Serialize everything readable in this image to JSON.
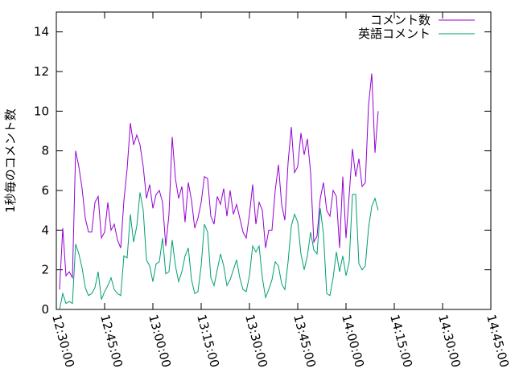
{
  "chart_data": {
    "type": "line",
    "ylabel": "1秒毎のコメント数",
    "xlim": [
      "12:30:00",
      "14:45:00"
    ],
    "ylim": [
      0,
      15
    ],
    "x_ticks": [
      "12:30:00",
      "12:45:00",
      "13:00:00",
      "13:15:00",
      "13:30:00",
      "13:45:00",
      "14:00:00",
      "14:15:00",
      "14:30:00",
      "14:45:00"
    ],
    "y_ticks": [
      "0",
      "2",
      "4",
      "6",
      "8",
      "10",
      "12",
      "14"
    ],
    "legend_position": "top-right",
    "series": [
      {
        "name": "コメント数",
        "color": "#9400d3",
        "start": "12:31:00",
        "step_seconds": 60,
        "values": [
          1.0,
          4.1,
          1.7,
          1.9,
          1.6,
          8.0,
          7.2,
          6.1,
          4.6,
          3.9,
          3.9,
          5.4,
          5.7,
          3.6,
          3.9,
          5.4,
          4.0,
          4.3,
          3.5,
          3.1,
          5.5,
          7.1,
          9.4,
          8.3,
          8.8,
          8.3,
          7.2,
          5.6,
          6.3,
          5.1,
          5.8,
          6.0,
          5.4,
          3.2,
          4.8,
          8.7,
          6.6,
          5.6,
          6.2,
          4.4,
          6.4,
          5.5,
          4.1,
          4.6,
          5.4,
          6.7,
          6.6,
          4.7,
          4.3,
          5.7,
          5.3,
          6.1,
          4.7,
          6.0,
          4.8,
          5.3,
          4.6,
          3.9,
          3.6,
          4.8,
          6.3,
          4.3,
          5.4,
          5.0,
          3.1,
          4.0,
          4.0,
          6.0,
          7.3,
          5.3,
          4.5,
          7.4,
          9.2,
          6.9,
          7.2,
          8.9,
          7.8,
          8.6,
          6.9,
          3.4,
          3.7,
          5.6,
          6.4,
          5.0,
          4.7,
          6.0,
          5.7,
          3.1,
          6.7,
          3.6,
          5.8,
          8.1,
          6.7,
          7.6,
          6.2,
          6.4,
          10.3,
          11.9,
          7.9,
          10.0
        ]
      },
      {
        "name": "英語コメント",
        "color": "#009e73",
        "start": "12:31:00",
        "step_seconds": 60,
        "values": [
          0.0,
          0.8,
          0.3,
          0.4,
          0.3,
          3.3,
          2.8,
          2.1,
          1.1,
          0.7,
          0.8,
          1.1,
          1.9,
          0.5,
          0.9,
          1.2,
          1.6,
          1.0,
          0.8,
          0.7,
          2.7,
          2.6,
          4.8,
          3.4,
          4.2,
          5.9,
          5.0,
          2.5,
          2.2,
          1.4,
          2.3,
          2.4,
          3.6,
          1.8,
          1.9,
          3.5,
          2.2,
          1.4,
          1.9,
          2.7,
          3.1,
          1.5,
          0.8,
          0.9,
          2.2,
          4.3,
          3.9,
          1.6,
          1.2,
          2.0,
          2.8,
          2.2,
          1.2,
          1.5,
          2.0,
          2.5,
          1.6,
          1.0,
          0.9,
          1.7,
          3.2,
          2.9,
          3.2,
          1.6,
          0.6,
          1.0,
          1.5,
          2.4,
          2.2,
          1.3,
          1.0,
          2.4,
          4.2,
          4.8,
          4.4,
          2.8,
          2.0,
          2.7,
          3.9,
          3.0,
          2.8,
          5.1,
          3.8,
          0.8,
          0.7,
          1.6,
          2.9,
          1.9,
          2.7,
          1.7,
          2.4,
          5.8,
          5.8,
          2.3,
          2.0,
          2.2,
          4.1,
          5.2,
          5.6,
          5.0
        ]
      }
    ]
  }
}
